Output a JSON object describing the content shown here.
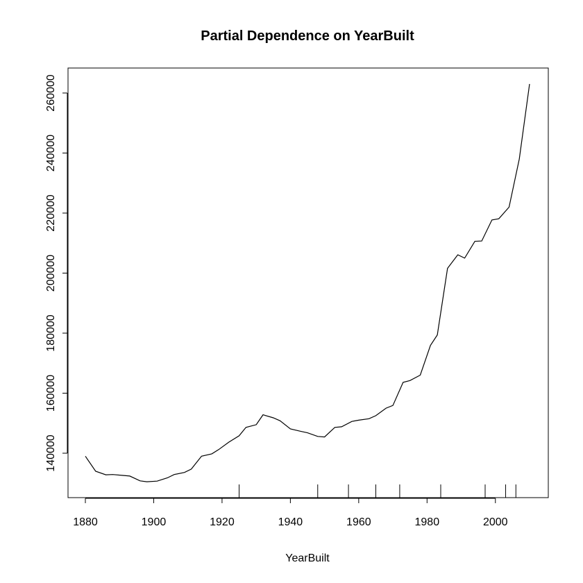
{
  "chart_data": {
    "type": "line",
    "title": "Partial Dependence on YearBuilt",
    "xlabel": "YearBuilt",
    "ylabel": "",
    "xlim": [
      1880,
      2010
    ],
    "ylim": [
      135000,
      265000
    ],
    "x_ticks": [
      1880,
      1900,
      1920,
      1940,
      1960,
      1980,
      2000
    ],
    "y_ticks": [
      140000,
      160000,
      180000,
      200000,
      220000,
      240000,
      260000
    ],
    "grid": false,
    "series": [
      {
        "x": [
          1880,
          1883,
          1886,
          1888,
          1891,
          1893,
          1896,
          1898,
          1901,
          1904,
          1906,
          1909,
          1911,
          1914,
          1917,
          1919,
          1922,
          1925,
          1927,
          1930,
          1932,
          1935,
          1937,
          1940,
          1943,
          1945,
          1948,
          1950,
          1953,
          1955,
          1958,
          1960,
          1963,
          1965,
          1968,
          1970,
          1973,
          1975,
          1978,
          1981,
          1983,
          1986,
          1989,
          1991,
          1994,
          1996,
          1999,
          2001,
          2004,
          2007,
          2010
        ],
        "y": [
          139000,
          134000,
          132800,
          132900,
          132600,
          132400,
          130800,
          130500,
          130700,
          131800,
          132900,
          133600,
          134700,
          139000,
          139800,
          141200,
          143700,
          145800,
          148600,
          149500,
          152800,
          151800,
          150800,
          148100,
          147300,
          146800,
          145600,
          145400,
          148600,
          148800,
          150600,
          151000,
          151500,
          152500,
          155000,
          155900,
          163600,
          164200,
          166000,
          175900,
          179400,
          201600,
          206100,
          205000,
          210600,
          210700,
          217700,
          218100,
          222000,
          238000,
          263000
        ]
      }
    ],
    "rug": [
      1925,
      1948,
      1957,
      1965,
      1972,
      1984,
      1997,
      2003,
      2006
    ]
  }
}
